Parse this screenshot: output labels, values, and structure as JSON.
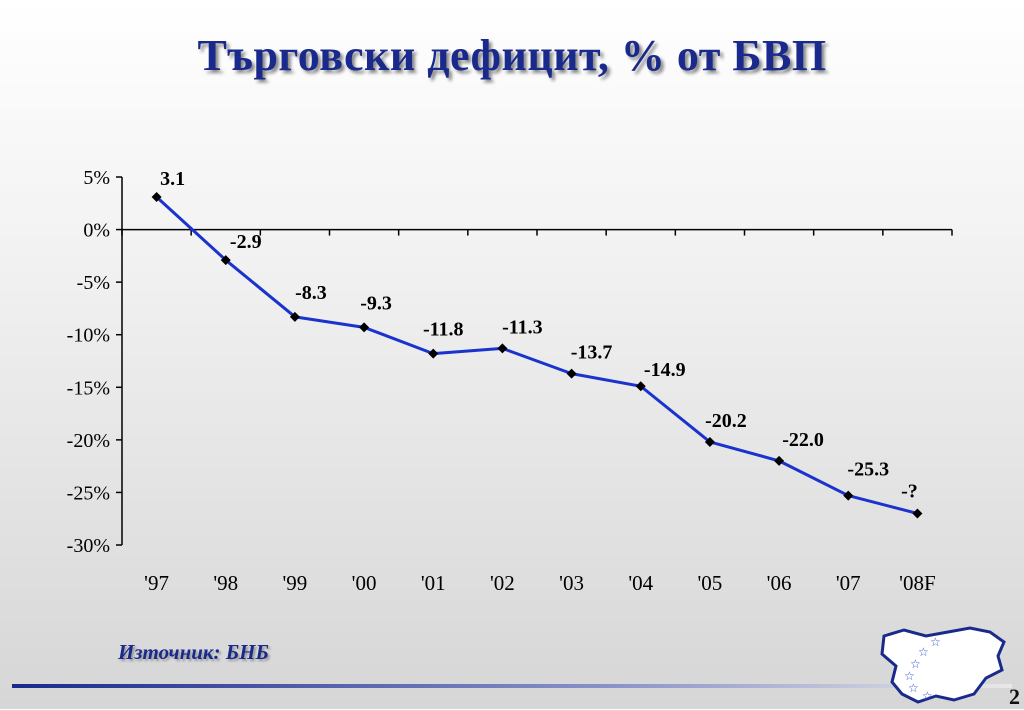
{
  "title": "Търговски дефицит, % от БВП",
  "source": "Източник: БНБ",
  "slide_number": "2",
  "colors": {
    "line": "#1a33cc",
    "title": "#1a2a8c",
    "marker": "#000000"
  },
  "chart_data": {
    "type": "line",
    "title": "",
    "xlabel": "",
    "ylabel": "",
    "categories": [
      "'97",
      "'98",
      "'99",
      "'00",
      "'01",
      "'02",
      "'03",
      "'04",
      "'05",
      "'06",
      "'07",
      "'08F"
    ],
    "values": [
      3.1,
      -2.9,
      -8.3,
      -9.3,
      -11.8,
      -11.3,
      -13.7,
      -14.9,
      -20.2,
      -22.0,
      -25.3,
      -27.0
    ],
    "data_labels": [
      "3.1",
      "-2.9",
      "-8.3",
      "-9.3",
      "-11.8",
      "-11.3",
      "-13.7",
      "-14.9",
      "-20.2",
      "-22.0",
      "-25.3",
      "-?"
    ],
    "y_ticks": [
      5,
      0,
      -5,
      -10,
      -15,
      -20,
      -25,
      -30
    ],
    "y_tick_labels": [
      "5%",
      "0%",
      "-5%",
      "-10%",
      "-15%",
      "-20%",
      "-25%",
      "-30%"
    ],
    "ylim": [
      -30,
      5
    ],
    "grid": false,
    "legend": "none"
  }
}
